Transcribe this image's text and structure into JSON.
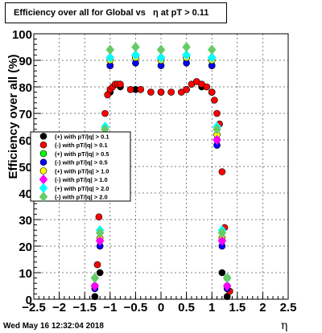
{
  "footer_timestamp": "Wed May 16 12:32:04 2018",
  "chart_data": {
    "type": "scatter",
    "title": "Efficiency over all for Global vs   η at pT > 0.11",
    "xlabel": "η",
    "ylabel": "Efficiency over all (%)",
    "xlim": [
      -2.5,
      2.5
    ],
    "ylim": [
      0,
      100
    ],
    "x_ticks": [
      -2.5,
      -2,
      -1.5,
      -1,
      -0.5,
      0,
      0.5,
      1,
      1.5,
      2,
      2.5
    ],
    "x_tick_labels": [
      "−2.5",
      "−2",
      "−1.5",
      "−1",
      "−0.5",
      "0",
      "0.5",
      "1",
      "1.5",
      "2",
      "2.5"
    ],
    "y_ticks": [
      0,
      10,
      20,
      30,
      40,
      50,
      60,
      70,
      80,
      90,
      100
    ],
    "y_tick_labels": [
      "0",
      "10",
      "20",
      "30",
      "40",
      "50",
      "60",
      "70",
      "80",
      "90",
      "100"
    ],
    "grid": true,
    "legend_position": "middle-left",
    "series": [
      {
        "name": "(+) with pT/|q| > 0.1",
        "color": "#000000",
        "marker": "circle",
        "x": [
          -1.3,
          -1.2,
          -1.1,
          -1.0,
          -0.8,
          -0.5,
          0,
          0.5,
          0.8,
          1.0,
          1.1,
          1.2,
          1.3
        ],
        "y": [
          1,
          10,
          60,
          78,
          80,
          79,
          78,
          79,
          80,
          78,
          60,
          10,
          1
        ]
      },
      {
        "name": "(-) with pT/|q| > 0.1",
        "color": "#ff0000",
        "marker": "circle",
        "x": [
          -1.25,
          -1.22,
          -1.15,
          -1.1,
          -1.05,
          -1.0,
          -0.95,
          -0.9,
          -0.85,
          -0.8,
          -0.6,
          -0.4,
          -0.2,
          0,
          0.2,
          0.4,
          0.5,
          0.6,
          0.7,
          0.8,
          0.9,
          1.0,
          1.05,
          1.1,
          1.15,
          1.2,
          1.25,
          1.3,
          1.35
        ],
        "y": [
          13,
          31,
          48,
          70,
          77,
          79,
          80,
          81,
          81,
          81,
          79,
          79,
          78,
          78,
          78,
          78,
          79,
          81,
          82,
          81,
          80,
          78,
          75,
          70,
          66,
          48,
          27,
          8,
          3
        ]
      },
      {
        "name": "(+) with pT/|q| > 0.5",
        "color": "#00ff00",
        "marker": "circle",
        "x": [
          -1.3,
          -1.2,
          -1.1,
          -1.0,
          -0.5,
          0,
          0.5,
          1.0,
          1.1,
          1.2,
          1.3
        ],
        "y": [
          5,
          22,
          60,
          88,
          91,
          90,
          91,
          88,
          60,
          22,
          5
        ]
      },
      {
        "name": "(-) with pT/|q| > 0.5",
        "color": "#0000ff",
        "marker": "circle",
        "x": [
          -1.3,
          -1.2,
          -1.1,
          -1.0,
          -0.5,
          0,
          0.5,
          1.0,
          1.1,
          1.2,
          1.3
        ],
        "y": [
          4,
          20,
          58,
          88,
          89,
          88,
          89,
          88,
          58,
          20,
          4
        ]
      },
      {
        "name": "(+) with pT/|q| > 1.0",
        "color": "#ffff00",
        "marker": "circle",
        "x": [
          -1.3,
          -1.2,
          -1.1,
          -1.0,
          -0.5,
          0,
          0.5,
          1.0,
          1.1,
          1.2,
          1.3
        ],
        "y": [
          5,
          23,
          62,
          90,
          91,
          90,
          91,
          90,
          62,
          23,
          5
        ]
      },
      {
        "name": "(-) with pT/|q| > 1.0",
        "color": "#ff00ff",
        "marker": "diamond",
        "x": [
          -1.3,
          -1.2,
          -1.1,
          -1.0,
          -0.5,
          0,
          0.5,
          1.0,
          1.1,
          1.2,
          1.3
        ],
        "y": [
          5,
          22,
          60,
          91,
          92,
          91,
          92,
          91,
          60,
          22,
          5
        ]
      },
      {
        "name": "(+) with pT/|q| > 2.0",
        "color": "#00ffff",
        "marker": "diamond",
        "x": [
          -1.3,
          -1.2,
          -1.1,
          -1.0,
          -0.5,
          0,
          0.5,
          1.0,
          1.1,
          1.2,
          1.3
        ],
        "y": [
          8,
          26,
          65,
          91,
          92,
          91,
          92,
          91,
          65,
          26,
          8
        ]
      },
      {
        "name": "(-) with pT/|q| > 2.0",
        "color": "#66cc66",
        "marker": "diamond",
        "x": [
          -1.3,
          -1.2,
          -1.1,
          -1.0,
          -0.5,
          0,
          0.5,
          1.0,
          1.1,
          1.2,
          1.3
        ],
        "y": [
          8,
          25,
          64,
          94,
          95,
          94,
          95,
          94,
          64,
          25,
          8
        ]
      }
    ]
  }
}
